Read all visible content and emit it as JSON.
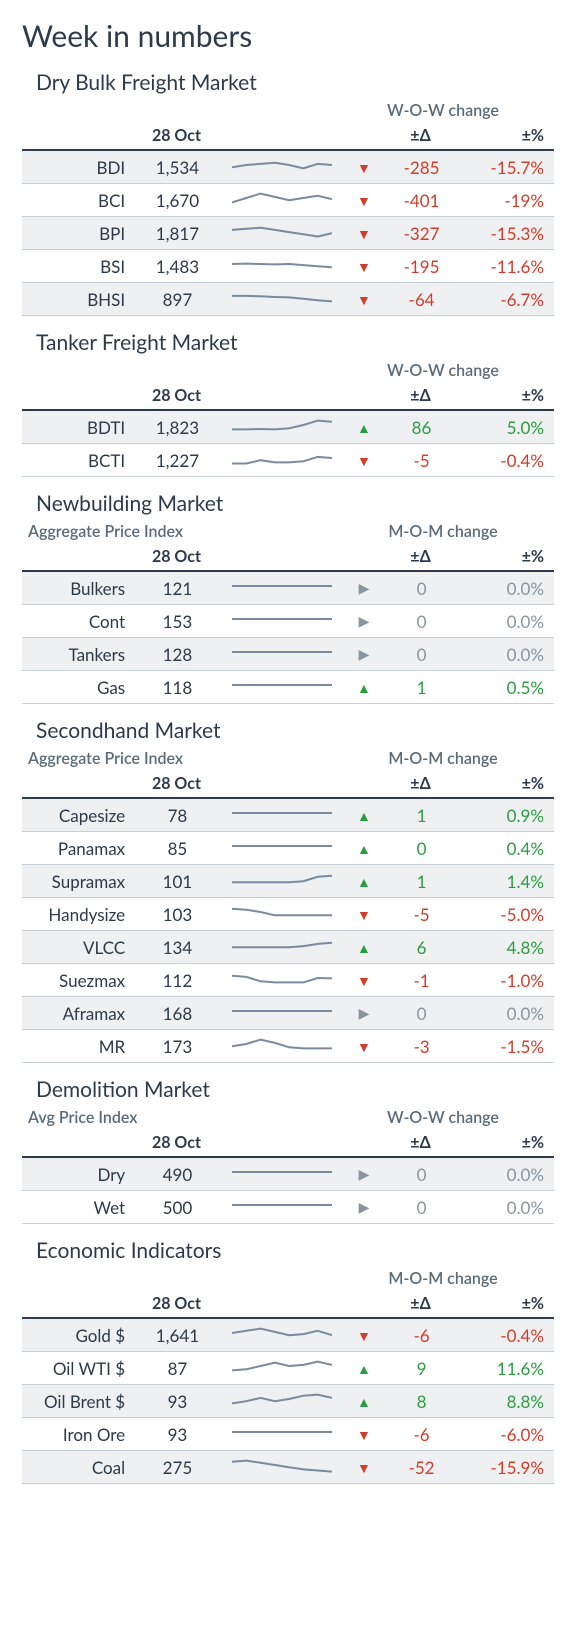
{
  "page_title": "Week in numbers",
  "date_label": "28 Oct",
  "colors": {
    "up": "#2a9d3f",
    "down": "#d43c2a",
    "flat": "#8a949e",
    "text": "#2d3a4a",
    "subtext": "#5a6b7a",
    "shade": "#eef0f2",
    "sparkline": "#7a8ba0",
    "border": "#c8cfd6"
  },
  "column_headers": {
    "delta": "±Δ",
    "pct": "±%"
  },
  "change_labels": {
    "wow": "W-O-W change",
    "mom": "M-O-M change"
  },
  "subheaders": {
    "aggregate": "Aggregate Price Index",
    "avg": "Avg Price Index"
  },
  "sections": [
    {
      "title": "Dry Bulk Freight Market",
      "subheader_left": null,
      "change_type": "wow",
      "rows": [
        {
          "label": "BDI",
          "value": "1,534",
          "delta": "-285",
          "pct": "-15.7%",
          "dir": "down",
          "shaded": true,
          "spark": [
            0.4,
            0.5,
            0.55,
            0.6,
            0.5,
            0.35,
            0.55,
            0.5
          ]
        },
        {
          "label": "BCI",
          "value": "1,670",
          "delta": "-401",
          "pct": "-19%",
          "dir": "down",
          "shaded": false,
          "spark": [
            0.3,
            0.5,
            0.7,
            0.55,
            0.4,
            0.5,
            0.6,
            0.45
          ]
        },
        {
          "label": "BPI",
          "value": "1,817",
          "delta": "-327",
          "pct": "-15.3%",
          "dir": "down",
          "shaded": true,
          "spark": [
            0.55,
            0.6,
            0.65,
            0.55,
            0.45,
            0.35,
            0.25,
            0.4
          ]
        },
        {
          "label": "BSI",
          "value": "1,483",
          "delta": "-195",
          "pct": "-11.6%",
          "dir": "down",
          "shaded": false,
          "spark": [
            0.5,
            0.52,
            0.5,
            0.48,
            0.5,
            0.45,
            0.4,
            0.35
          ]
        },
        {
          "label": "BHSI",
          "value": "897",
          "delta": "-64",
          "pct": "-6.7%",
          "dir": "down",
          "shaded": true,
          "spark": [
            0.55,
            0.55,
            0.53,
            0.5,
            0.48,
            0.42,
            0.35,
            0.3
          ]
        }
      ]
    },
    {
      "title": "Tanker Freight Market",
      "subheader_left": null,
      "change_type": "wow",
      "rows": [
        {
          "label": "BDTI",
          "value": "1,823",
          "delta": "86",
          "pct": "5.0%",
          "dir": "up",
          "shaded": true,
          "spark": [
            0.3,
            0.3,
            0.32,
            0.3,
            0.35,
            0.5,
            0.7,
            0.65
          ]
        },
        {
          "label": "BCTI",
          "value": "1,227",
          "delta": "-5",
          "pct": "-0.4%",
          "dir": "down",
          "shaded": false,
          "spark": [
            0.25,
            0.25,
            0.4,
            0.3,
            0.3,
            0.35,
            0.55,
            0.5
          ]
        }
      ]
    },
    {
      "title": "Newbuilding Market",
      "subheader_left": "aggregate",
      "change_type": "mom",
      "rows": [
        {
          "label": "Bulkers",
          "value": "121",
          "delta": "0",
          "pct": "0.0%",
          "dir": "flat",
          "shaded": true,
          "spark": [
            0.5,
            0.5,
            0.5,
            0.5,
            0.5,
            0.5,
            0.5,
            0.5
          ]
        },
        {
          "label": "Cont",
          "value": "153",
          "delta": "0",
          "pct": "0.0%",
          "dir": "flat",
          "shaded": false,
          "spark": [
            0.5,
            0.5,
            0.5,
            0.5,
            0.5,
            0.5,
            0.5,
            0.5
          ]
        },
        {
          "label": "Tankers",
          "value": "128",
          "delta": "0",
          "pct": "0.0%",
          "dir": "flat",
          "shaded": true,
          "spark": [
            0.5,
            0.5,
            0.5,
            0.5,
            0.5,
            0.5,
            0.5,
            0.5
          ]
        },
        {
          "label": "Gas",
          "value": "118",
          "delta": "1",
          "pct": "0.5%",
          "dir": "up",
          "shaded": false,
          "spark": [
            0.5,
            0.5,
            0.5,
            0.5,
            0.5,
            0.5,
            0.5,
            0.5
          ]
        }
      ]
    },
    {
      "title": "Secondhand Market",
      "subheader_left": "aggregate",
      "change_type": "mom",
      "rows": [
        {
          "label": "Capesize",
          "value": "78",
          "delta": "1",
          "pct": "0.9%",
          "dir": "up",
          "shaded": true,
          "spark": [
            0.5,
            0.5,
            0.5,
            0.5,
            0.5,
            0.5,
            0.5,
            0.5
          ]
        },
        {
          "label": "Panamax",
          "value": "85",
          "delta": "0",
          "pct": "0.4%",
          "dir": "up",
          "shaded": false,
          "spark": [
            0.5,
            0.5,
            0.5,
            0.5,
            0.5,
            0.5,
            0.5,
            0.5
          ]
        },
        {
          "label": "Supramax",
          "value": "101",
          "delta": "1",
          "pct": "1.4%",
          "dir": "up",
          "shaded": true,
          "spark": [
            0.35,
            0.35,
            0.35,
            0.35,
            0.35,
            0.4,
            0.6,
            0.65
          ]
        },
        {
          "label": "Handysize",
          "value": "103",
          "delta": "-5",
          "pct": "-5.0%",
          "dir": "down",
          "shaded": false,
          "spark": [
            0.65,
            0.6,
            0.5,
            0.35,
            0.35,
            0.35,
            0.35,
            0.35
          ]
        },
        {
          "label": "VLCC",
          "value": "134",
          "delta": "6",
          "pct": "4.8%",
          "dir": "up",
          "shaded": true,
          "spark": [
            0.4,
            0.4,
            0.4,
            0.4,
            0.4,
            0.45,
            0.55,
            0.6
          ]
        },
        {
          "label": "Suezmax",
          "value": "112",
          "delta": "-1",
          "pct": "-1.0%",
          "dir": "down",
          "shaded": false,
          "spark": [
            0.6,
            0.55,
            0.35,
            0.3,
            0.3,
            0.3,
            0.5,
            0.48
          ]
        },
        {
          "label": "Aframax",
          "value": "168",
          "delta": "0",
          "pct": "0.0%",
          "dir": "flat",
          "shaded": true,
          "spark": [
            0.5,
            0.5,
            0.5,
            0.5,
            0.5,
            0.5,
            0.5,
            0.5
          ]
        },
        {
          "label": "MR",
          "value": "173",
          "delta": "-3",
          "pct": "-1.5%",
          "dir": "down",
          "shaded": false,
          "spark": [
            0.4,
            0.5,
            0.7,
            0.55,
            0.35,
            0.3,
            0.3,
            0.3
          ]
        }
      ]
    },
    {
      "title": "Demolition Market",
      "subheader_left": "avg",
      "change_type": "wow",
      "rows": [
        {
          "label": "Dry",
          "value": "490",
          "delta": "0",
          "pct": "0.0%",
          "dir": "flat",
          "shaded": true,
          "spark": [
            0.5,
            0.5,
            0.5,
            0.5,
            0.5,
            0.5,
            0.5,
            0.5
          ]
        },
        {
          "label": "Wet",
          "value": "500",
          "delta": "0",
          "pct": "0.0%",
          "dir": "flat",
          "shaded": false,
          "spark": [
            0.5,
            0.5,
            0.5,
            0.5,
            0.5,
            0.5,
            0.5,
            0.5
          ]
        }
      ]
    },
    {
      "title": "Economic Indicators",
      "subheader_left": null,
      "change_type": "mom",
      "rows": [
        {
          "label": "Gold $",
          "value": "1,641",
          "delta": "-6",
          "pct": "-0.4%",
          "dir": "down",
          "shaded": true,
          "spark": [
            0.5,
            0.6,
            0.7,
            0.55,
            0.4,
            0.45,
            0.6,
            0.4
          ]
        },
        {
          "label": "Oil WTI $",
          "value": "87",
          "delta": "9",
          "pct": "11.6%",
          "dir": "up",
          "shaded": false,
          "spark": [
            0.3,
            0.35,
            0.5,
            0.65,
            0.5,
            0.55,
            0.7,
            0.55
          ]
        },
        {
          "label": "Oil Brent $",
          "value": "93",
          "delta": "8",
          "pct": "8.8%",
          "dir": "up",
          "shaded": true,
          "spark": [
            0.3,
            0.4,
            0.55,
            0.4,
            0.5,
            0.65,
            0.7,
            0.55
          ]
        },
        {
          "label": "Iron Ore",
          "value": "93",
          "delta": "-6",
          "pct": "-6.0%",
          "dir": "down",
          "shaded": false,
          "spark": [
            0.5,
            0.5,
            0.5,
            0.5,
            0.5,
            0.5,
            0.5,
            0.5
          ]
        },
        {
          "label": "Coal",
          "value": "275",
          "delta": "-52",
          "pct": "-15.9%",
          "dir": "down",
          "shaded": true,
          "spark": [
            0.65,
            0.7,
            0.6,
            0.5,
            0.4,
            0.3,
            0.25,
            0.2
          ]
        }
      ]
    }
  ]
}
